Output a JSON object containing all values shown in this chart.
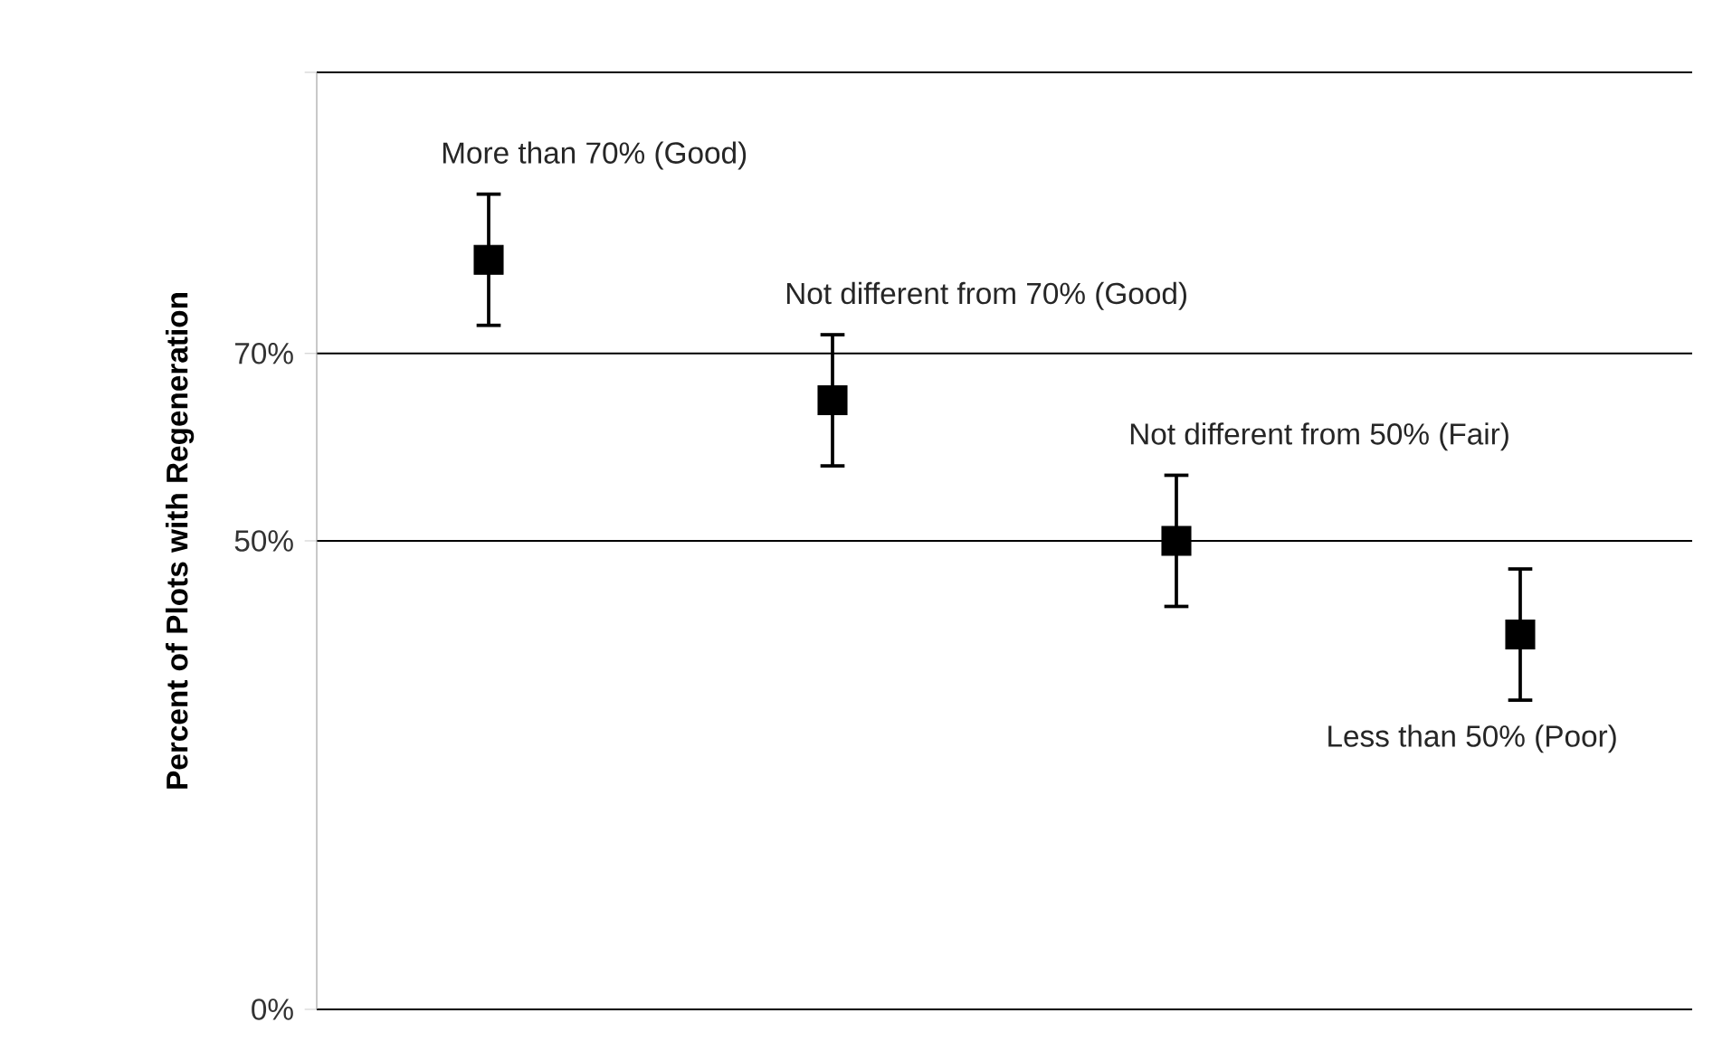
{
  "chart_data": {
    "type": "scatter",
    "ylabel": "Percent of Plots with Regeneration",
    "categories": [
      null,
      null,
      null,
      null
    ],
    "values": [
      80,
      65,
      50,
      40
    ],
    "errors": [
      7,
      7,
      7,
      7
    ],
    "color": "#000000",
    "marker": "square",
    "ylim": [
      0,
      100
    ],
    "yticks": [
      {
        "value": 0,
        "label": "0%"
      },
      {
        "value": 50,
        "label": "50%"
      },
      {
        "value": 70,
        "label": "70%"
      },
      {
        "value": 100,
        "label": null
      }
    ],
    "grid": "y",
    "annotations": [
      "More than 70% (Good)",
      "Not different  from 70% (Good)",
      "Not different  from 50% (Fair)",
      "Less than 50% (Poor)"
    ]
  }
}
